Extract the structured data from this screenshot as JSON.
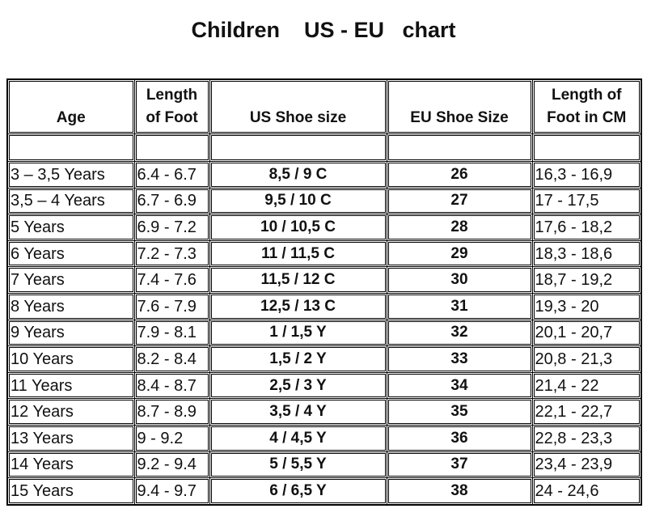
{
  "title": "Children    US - EU   chart",
  "table": {
    "header": [
      "Age",
      "Length of Foot",
      "US Shoe size",
      "EU Shoe Size",
      "Length of Foot in CM"
    ],
    "rows": [
      [
        "3 – 3,5 Years",
        "6.4 - 6.7",
        "8,5 / 9 C",
        "26",
        "16,3 - 16,9"
      ],
      [
        "3,5 – 4 Years",
        "6.7 - 6.9",
        "9,5 / 10 C",
        "27",
        "17 - 17,5"
      ],
      [
        "5 Years",
        "6.9 - 7.2",
        "10 / 10,5 C",
        "28",
        "17,6 - 18,2"
      ],
      [
        "6 Years",
        "7.2 - 7.3",
        "11 / 11,5 C",
        "29",
        "18,3 - 18,6"
      ],
      [
        "7 Years",
        "7.4 - 7.6",
        "11,5 / 12 C",
        "30",
        "18,7 - 19,2"
      ],
      [
        "8 Years",
        "7.6 - 7.9",
        "12,5 / 13 C",
        "31",
        "19,3 - 20"
      ],
      [
        "9 Years",
        "7.9 - 8.1",
        "1 / 1,5 Y",
        "32",
        "20,1 - 20,7"
      ],
      [
        "10 Years",
        "8.2 - 8.4",
        "1,5 / 2 Y",
        "33",
        "20,8 - 21,3"
      ],
      [
        "11 Years",
        "8.4 - 8.7",
        "2,5 / 3 Y",
        "34",
        "21,4 - 22"
      ],
      [
        "12 Years",
        "8.7 - 8.9",
        "3,5 / 4 Y",
        "35",
        "22,1 - 22,7"
      ],
      [
        "13 Years",
        "9 - 9.2",
        "4 / 4,5 Y",
        "36",
        "22,8 - 23,3"
      ],
      [
        "14 Years",
        "9.2 - 9.4",
        "5 / 5,5 Y",
        "37",
        "23,4 - 23,9"
      ],
      [
        "15 Years",
        "9.4 - 9.7",
        "6 / 6,5 Y",
        "38",
        "24 - 24,6"
      ]
    ]
  }
}
